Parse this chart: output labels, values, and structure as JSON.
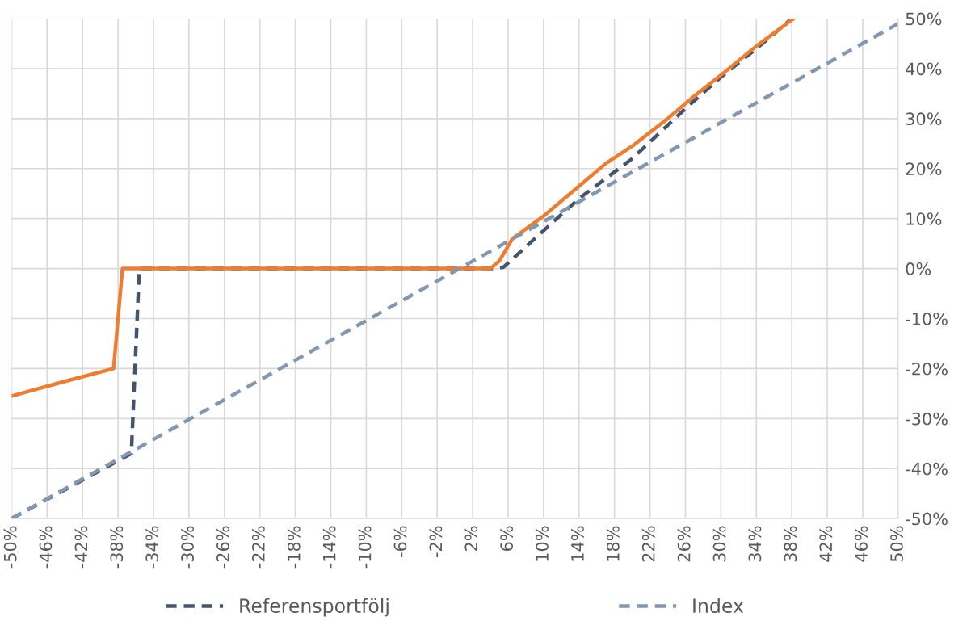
{
  "chart_data": {
    "type": "line",
    "xlim": [
      -50,
      50
    ],
    "ylim": [
      -50,
      50
    ],
    "xticks": [
      {
        "value": -50,
        "label": "-50%"
      },
      {
        "value": -46,
        "label": "-46%"
      },
      {
        "value": -42,
        "label": "-42%"
      },
      {
        "value": -38,
        "label": "-38%"
      },
      {
        "value": -34,
        "label": "-34%"
      },
      {
        "value": -30,
        "label": "-30%"
      },
      {
        "value": -26,
        "label": "-26%"
      },
      {
        "value": -22,
        "label": "-22%"
      },
      {
        "value": -18,
        "label": "-18%"
      },
      {
        "value": -14,
        "label": "-14%"
      },
      {
        "value": -10,
        "label": "-10%"
      },
      {
        "value": -6,
        "label": "-6%"
      },
      {
        "value": -2,
        "label": "-2%"
      },
      {
        "value": 2,
        "label": "2%"
      },
      {
        "value": 6,
        "label": "6%"
      },
      {
        "value": 10,
        "label": "10%"
      },
      {
        "value": 14,
        "label": "14%"
      },
      {
        "value": 18,
        "label": "18%"
      },
      {
        "value": 22,
        "label": "22%"
      },
      {
        "value": 26,
        "label": "26%"
      },
      {
        "value": 30,
        "label": "30%"
      },
      {
        "value": 34,
        "label": "34%"
      },
      {
        "value": 38,
        "label": "38%"
      },
      {
        "value": 42,
        "label": "42%"
      },
      {
        "value": 46,
        "label": "46%"
      },
      {
        "value": 50,
        "label": "50%"
      }
    ],
    "yticks": [
      {
        "value": -50,
        "label": "-50%"
      },
      {
        "value": -40,
        "label": "-40%"
      },
      {
        "value": -30,
        "label": "-30%"
      },
      {
        "value": -20,
        "label": "-20%"
      },
      {
        "value": -10,
        "label": "-10%"
      },
      {
        "value": 0,
        "label": "0%"
      },
      {
        "value": 10,
        "label": "10%"
      },
      {
        "value": 20,
        "label": "20%"
      },
      {
        "value": 30,
        "label": "30%"
      },
      {
        "value": 40,
        "label": "40%"
      },
      {
        "value": 50,
        "label": "50%"
      }
    ],
    "grid": true,
    "legend": "bottom",
    "marker": "none",
    "series": [
      {
        "name": "Referensportfölj",
        "color": "#44546a",
        "line_style": "dashed",
        "x": [
          -50,
          -36.5,
          -35.6,
          4.5,
          5.5,
          10,
          14,
          20,
          26,
          30,
          34,
          38
        ],
        "values": [
          -50,
          -37,
          0,
          0,
          0.3,
          7.6,
          14,
          22,
          32,
          38.3,
          44,
          50
        ]
      },
      {
        "color": "#ed7d31",
        "line_style": "solid",
        "x": [
          -50,
          -44.5,
          -38.5,
          -37.5,
          4,
          5,
          6.5,
          10,
          14,
          17,
          20,
          24,
          27,
          30,
          34,
          38.2
        ],
        "values": [
          -25.5,
          -22.8,
          -20,
          0,
          0,
          1.5,
          6,
          10.5,
          16.5,
          21,
          24.5,
          30,
          34.5,
          38.7,
          44.5,
          50
        ]
      },
      {
        "name": "Index",
        "color": "#8497b0",
        "line_style": "dashed",
        "x": [
          -50,
          50
        ],
        "values": [
          -50,
          49
        ]
      }
    ]
  }
}
